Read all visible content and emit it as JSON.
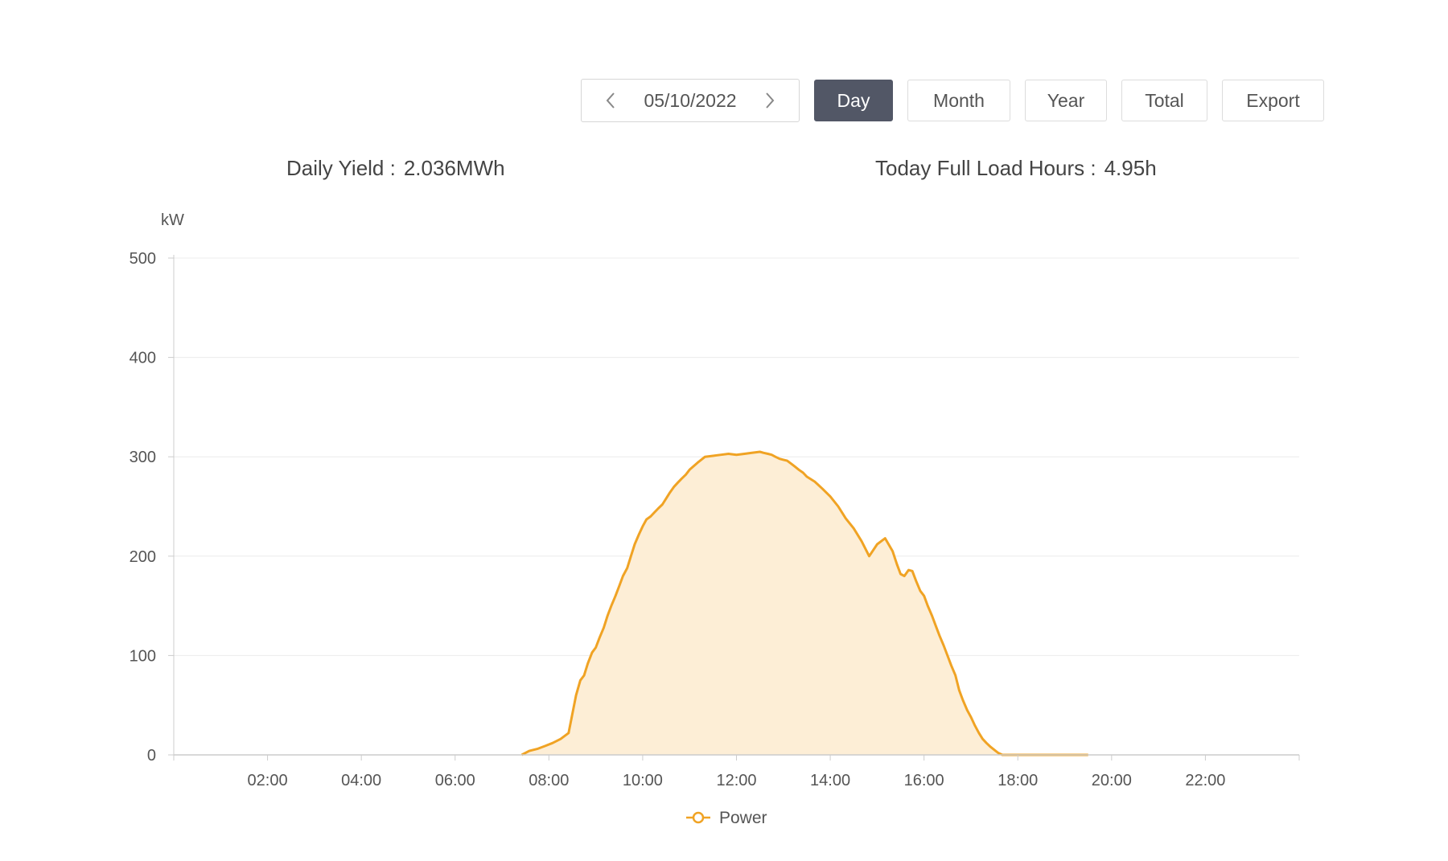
{
  "toolbar": {
    "date": "05/10/2022",
    "prev_icon": "chevron-left-icon",
    "next_icon": "chevron-right-icon",
    "buttons": {
      "day": "Day",
      "month": "Month",
      "year": "Year",
      "total": "Total",
      "export": "Export"
    },
    "active_button": "day",
    "active_color": "#525766"
  },
  "stats": {
    "daily_yield_label": "Daily Yield :",
    "daily_yield_value": "2.036MWh",
    "full_load_label": "Today Full Load Hours :",
    "full_load_value": "4.95h"
  },
  "chart_data": {
    "type": "area",
    "title": "",
    "xlabel": "",
    "ylabel": "kW",
    "xlim": [
      0,
      24
    ],
    "ylim": [
      0,
      500
    ],
    "x_ticks": [
      2,
      4,
      6,
      8,
      10,
      12,
      14,
      16,
      18,
      20,
      22
    ],
    "x_tick_labels": [
      "02:00",
      "04:00",
      "06:00",
      "08:00",
      "10:00",
      "12:00",
      "14:00",
      "16:00",
      "18:00",
      "20:00",
      "22:00"
    ],
    "y_ticks": [
      0,
      100,
      200,
      300,
      400,
      500
    ],
    "y_tick_labels": [
      "0",
      "100",
      "200",
      "300",
      "400",
      "500"
    ],
    "grid": true,
    "legend_position": "bottom-center",
    "line_color": "#f0a324",
    "fill_color": "#fdeed6",
    "series": [
      {
        "name": "Power",
        "x": [
          7.42,
          7.58,
          7.75,
          7.92,
          8.08,
          8.25,
          8.42,
          8.58,
          8.67,
          8.75,
          8.83,
          8.92,
          9.0,
          9.08,
          9.17,
          9.25,
          9.33,
          9.42,
          9.5,
          9.58,
          9.67,
          9.75,
          9.83,
          9.92,
          10.0,
          10.08,
          10.17,
          10.25,
          10.33,
          10.42,
          10.5,
          10.58,
          10.67,
          10.75,
          10.83,
          10.92,
          11.0,
          11.17,
          11.33,
          11.5,
          11.67,
          11.83,
          12.0,
          12.17,
          12.33,
          12.5,
          12.58,
          12.67,
          12.75,
          12.83,
          12.92,
          13.0,
          13.08,
          13.17,
          13.25,
          13.33,
          13.42,
          13.5,
          13.67,
          13.83,
          14.0,
          14.17,
          14.33,
          14.5,
          14.67,
          14.83,
          15.0,
          15.17,
          15.33,
          15.42,
          15.5,
          15.58,
          15.67,
          15.75,
          15.83,
          15.92,
          16.0,
          16.08,
          16.17,
          16.25,
          16.33,
          16.42,
          16.5,
          16.58,
          16.67,
          16.75,
          16.83,
          16.92,
          17.0,
          17.08,
          17.17,
          17.25,
          17.33,
          17.42,
          17.5,
          17.58,
          17.67,
          17.75,
          17.83,
          17.92,
          18.0,
          18.08,
          18.17,
          18.25,
          18.42,
          18.58,
          18.75,
          18.92,
          19.0,
          19.17,
          19.33,
          19.5
        ],
        "values": [
          0,
          4,
          6,
          9,
          12,
          16,
          22,
          60,
          75,
          80,
          92,
          103,
          108,
          118,
          128,
          140,
          150,
          160,
          170,
          180,
          188,
          200,
          212,
          222,
          230,
          237,
          240,
          244,
          248,
          252,
          258,
          264,
          270,
          274,
          278,
          282,
          287,
          294,
          300,
          301,
          302,
          303,
          302,
          303,
          304,
          305,
          304,
          303,
          302,
          300,
          298,
          297,
          296,
          293,
          290,
          287,
          284,
          280,
          275,
          268,
          260,
          250,
          238,
          228,
          215,
          200,
          212,
          218,
          205,
          192,
          182,
          180,
          186,
          185,
          175,
          165,
          160,
          150,
          140,
          130,
          120,
          110,
          100,
          90,
          80,
          65,
          55,
          45,
          38,
          30,
          22,
          16,
          12,
          8,
          5,
          2,
          0,
          0,
          0,
          0,
          0,
          0,
          0,
          0,
          0,
          0,
          0,
          0,
          0,
          0,
          0,
          0
        ]
      }
    ]
  }
}
